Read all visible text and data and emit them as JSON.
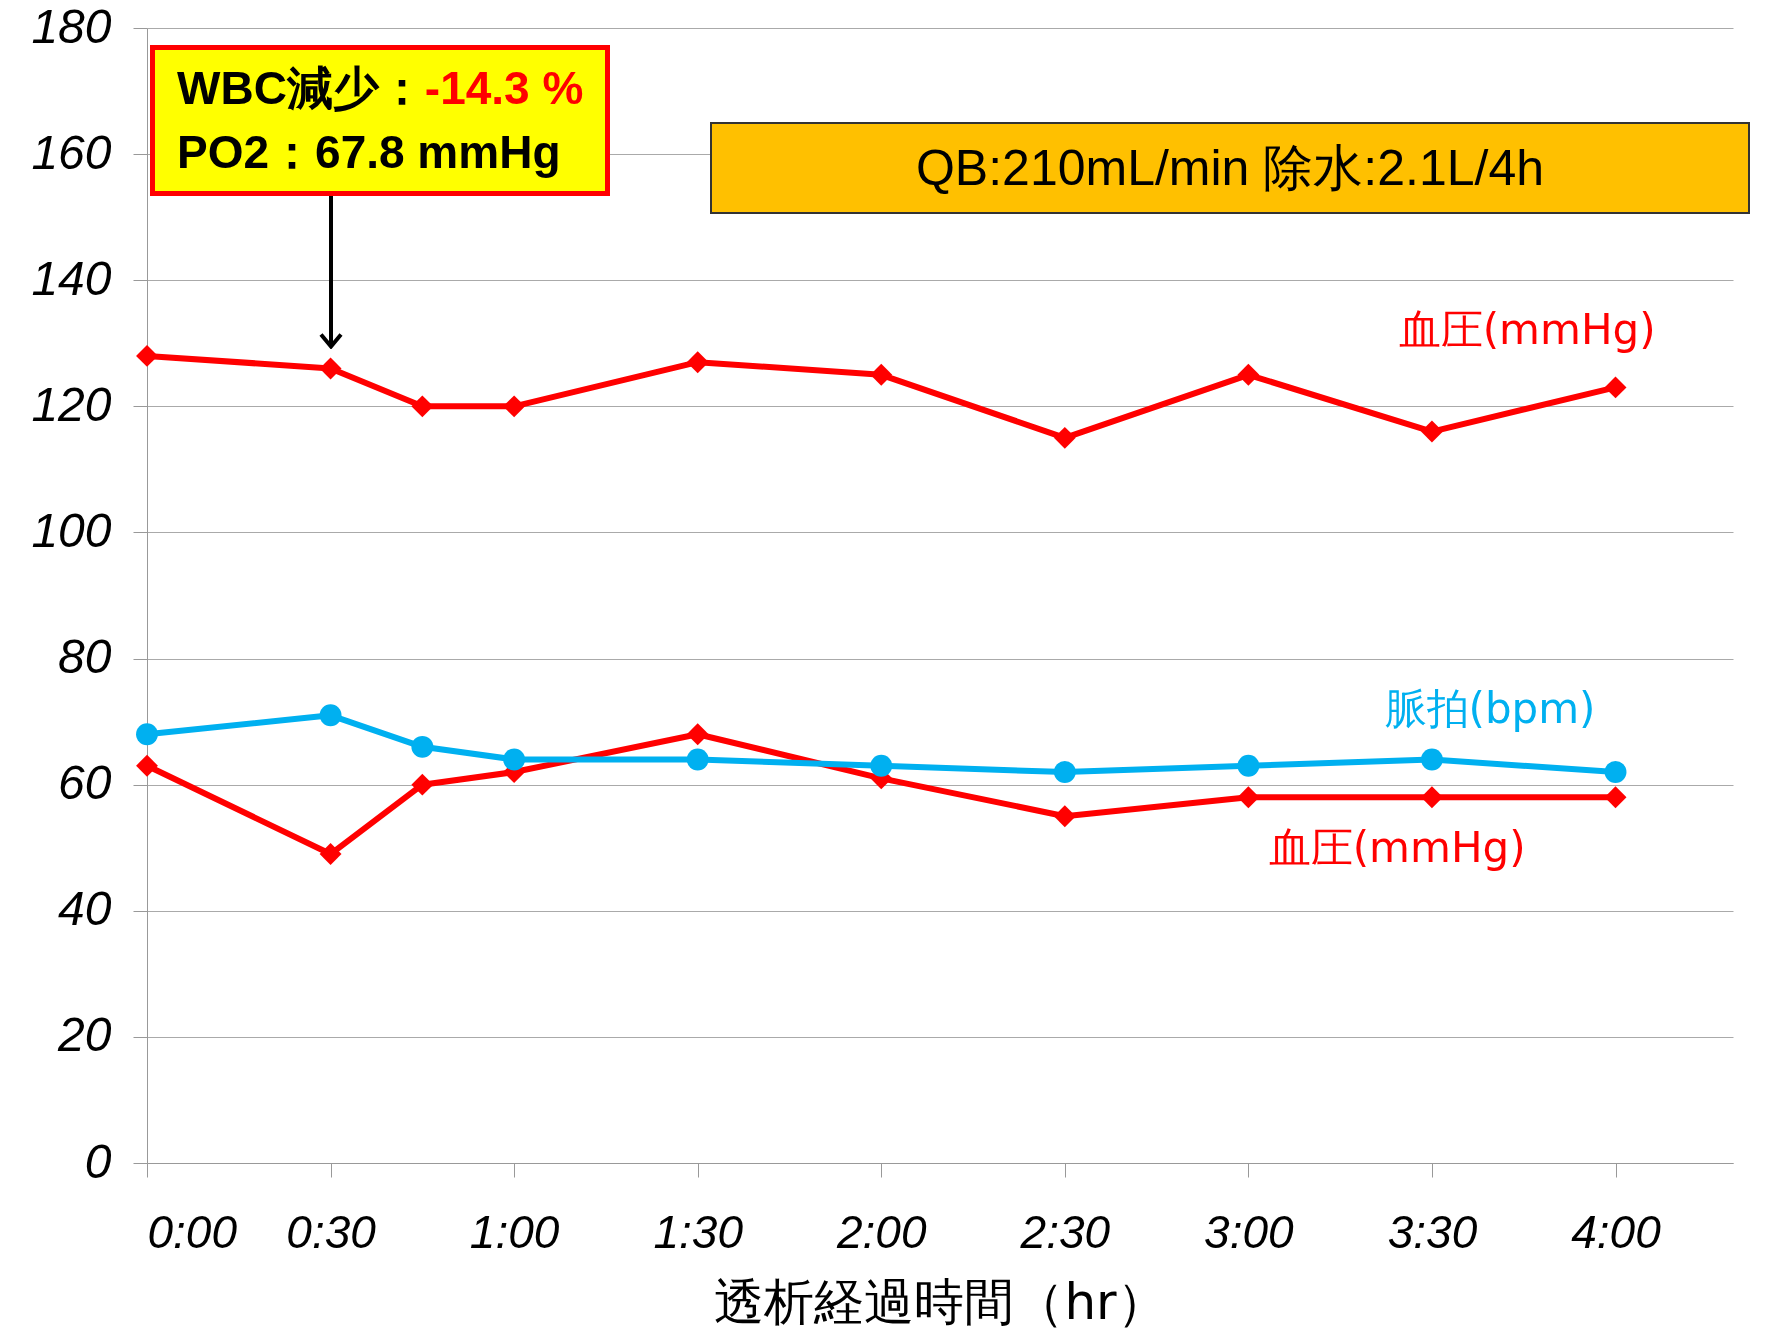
{
  "chart_data": {
    "type": "line",
    "xlabel": "透析経過時間（hr）",
    "x": [
      0,
      0.5,
      0.75,
      1,
      1.5,
      2,
      2.5,
      3,
      3.5,
      4
    ],
    "series": [
      {
        "name": "血圧(mmHg)",
        "color": "#ff0000",
        "marker": "diamond",
        "values": [
          128,
          126,
          120,
          120,
          127,
          125,
          115,
          125,
          116,
          123
        ]
      },
      {
        "name": "血圧(mmHg)",
        "color": "#ff0000",
        "marker": "diamond",
        "values": [
          63,
          49,
          60,
          62,
          68,
          61,
          55,
          58,
          58,
          58
        ]
      },
      {
        "name": "脈拍(bpm)",
        "color": "#00b0f0",
        "marker": "circle",
        "values": [
          68,
          71,
          66,
          64,
          64,
          63,
          62,
          63,
          64,
          62
        ]
      }
    ],
    "xlim": [
      0,
      4.32
    ],
    "xticks": [
      {
        "value": 0,
        "label": "0:00"
      },
      {
        "value": 0.5,
        "label": "0:30"
      },
      {
        "value": 1,
        "label": "1:00"
      },
      {
        "value": 1.5,
        "label": "1:30"
      },
      {
        "value": 2,
        "label": "2:00"
      },
      {
        "value": 2.5,
        "label": "2:30"
      },
      {
        "value": 3,
        "label": "3:00"
      },
      {
        "value": 3.5,
        "label": "3:30"
      },
      {
        "value": 4,
        "label": "4:00"
      }
    ],
    "ylim": [
      0,
      180
    ],
    "yticks": [
      0,
      20,
      40,
      60,
      80,
      100,
      120,
      140,
      160,
      180
    ],
    "grid": "y",
    "legend": false,
    "line_style": "solid",
    "annotations": [
      "WBC減少：-14.3 %",
      "PO2：67.8 mmHg",
      "QB:210mL/min 除水:2.1L/4h"
    ]
  }
}
